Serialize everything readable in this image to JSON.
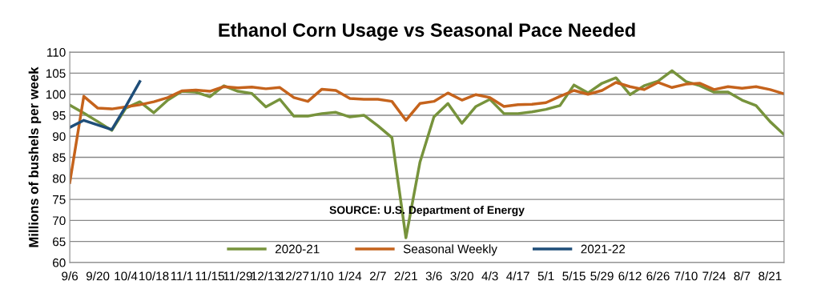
{
  "chart_data": {
    "type": "line",
    "title": "Ethanol Corn Usage vs Seasonal Pace Needed",
    "ylabel": "Millions of bushels per week",
    "categories": [
      "9/6",
      null,
      "9/20",
      null,
      "10/4",
      null,
      "10/18",
      null,
      "11/1",
      null,
      "11/15",
      null,
      "11/29",
      null,
      "12/13",
      null,
      "12/27",
      null,
      "1/10",
      null,
      "1/24",
      null,
      "2/7",
      null,
      "2/21",
      null,
      "3/6",
      null,
      "3/20",
      null,
      "4/3",
      null,
      "4/17",
      null,
      "5/1",
      null,
      "5/15",
      null,
      "5/29",
      null,
      "6/12",
      null,
      "6/26",
      null,
      "7/10",
      null,
      "7/24",
      null,
      "8/7",
      null,
      "8/21",
      null
    ],
    "series": [
      {
        "name": "2020-21",
        "color": "#77933c",
        "values": [
          97.4,
          95.5,
          93.5,
          91.4,
          96.7,
          98.2,
          95.6,
          98.6,
          100.7,
          100.5,
          99.4,
          102,
          100.7,
          100.2,
          97,
          98.8,
          94.8,
          94.8,
          95.4,
          95.7,
          94.6,
          95,
          92.5,
          89.7,
          65.9,
          83.8,
          94.6,
          97.8,
          93.1,
          97.1,
          98.8,
          95.4,
          95.4,
          95.8,
          96.4,
          97.3,
          102.2,
          100.3,
          102.6,
          103.9,
          99.9,
          102,
          103.1,
          105.6,
          103,
          102,
          100.5,
          100.5,
          98.6,
          97.3,
          93.5,
          90.4
        ]
      },
      {
        "name": "Seasonal Weekly",
        "color": "#c5631c",
        "values": [
          79,
          99.5,
          96.7,
          96.5,
          97,
          97.5,
          98.2,
          99.2,
          100.8,
          101,
          100.7,
          101.8,
          101.5,
          101.7,
          101.3,
          101.6,
          99.2,
          98.3,
          101.2,
          100.9,
          99,
          98.8,
          98.8,
          98.3,
          93.8,
          97.8,
          98.3,
          100.3,
          98.6,
          99.9,
          99.2,
          97.1,
          97.5,
          97.6,
          98,
          99.5,
          100.9,
          100,
          100.9,
          102.8,
          101.8,
          101.1,
          102.8,
          101.6,
          102.4,
          102.6,
          101.1,
          101.8,
          101.4,
          101.8,
          101.1,
          100.1
        ]
      },
      {
        "name": "2021-22",
        "color": "#1f4e79",
        "values": [
          92.1,
          93.8,
          92.7,
          91.6,
          97.1,
          103,
          null,
          null,
          null,
          null,
          null,
          null,
          null,
          null,
          null,
          null,
          null,
          null,
          null,
          null,
          null,
          null,
          null,
          null,
          null,
          null,
          null,
          null,
          null,
          null,
          null,
          null,
          null,
          null,
          null,
          null,
          null,
          null,
          null,
          null,
          null,
          null,
          null,
          null,
          null,
          null,
          null,
          null,
          null,
          null,
          null,
          null
        ]
      }
    ],
    "ylim": [
      60,
      110
    ],
    "yticks": [
      60,
      65,
      70,
      75,
      80,
      85,
      90,
      95,
      100,
      105,
      110
    ],
    "grid": "y",
    "legend": "bottom",
    "marker": "none",
    "line_style": "solid",
    "annotations": [
      "SOURCE: U.S. Department of Energy"
    ]
  }
}
